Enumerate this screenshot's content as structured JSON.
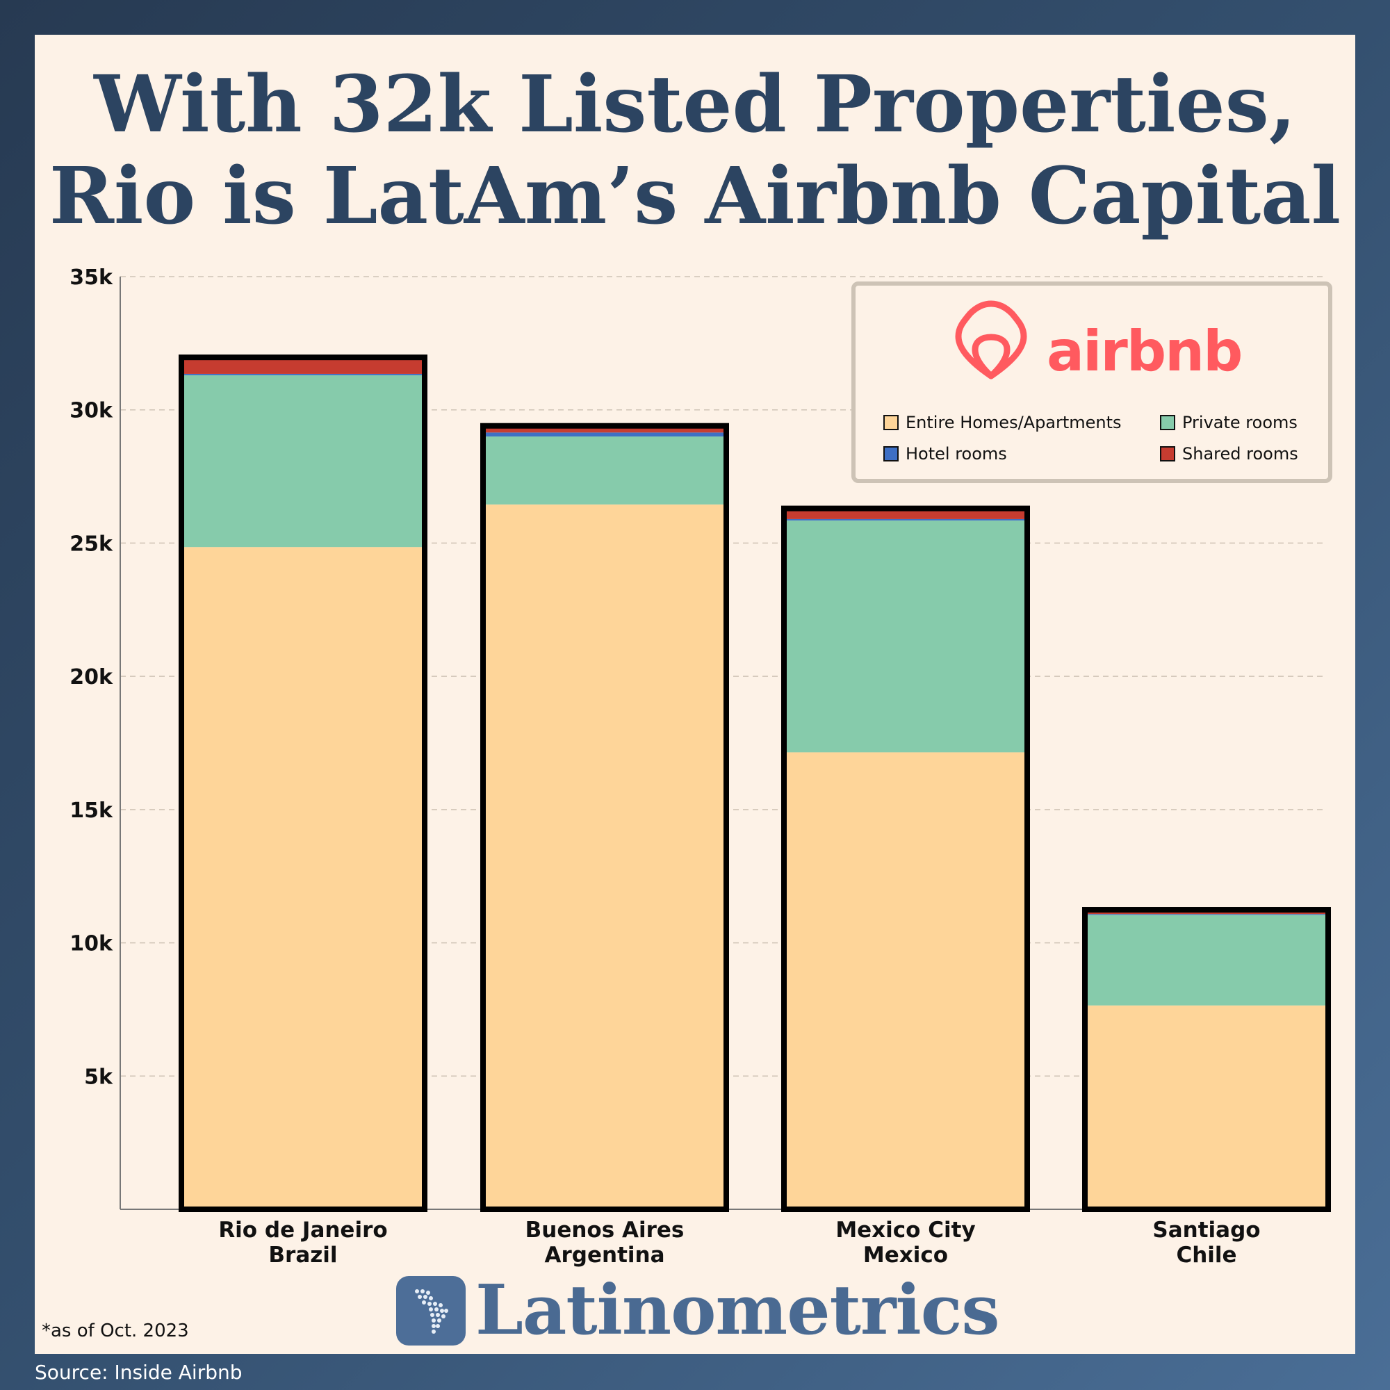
{
  "title_lines": [
    "With 32k Listed Properties,",
    "Rio is LatAm’s Airbnb Capital"
  ],
  "brand": {
    "name": "Latinometrics",
    "icon": "latam-map-icon"
  },
  "note": "*as of Oct. 2023",
  "source": "Source: Inside Airbnb",
  "legend": {
    "logo_text": "airbnb",
    "logo_icon": "airbnb-belo-icon",
    "placement": "top-right",
    "items": [
      {
        "label": "Entire Homes/Apartments",
        "color": "#fed599"
      },
      {
        "label": "Private rooms",
        "color": "#86cbab"
      },
      {
        "label": "Hotel rooms",
        "color": "#3e6fc4"
      },
      {
        "label": "Shared rooms",
        "color": "#c63c30"
      }
    ]
  },
  "colors": {
    "brand_accent": "#ff5a5f",
    "title": "#2c4461",
    "bar_outline": "#000000"
  },
  "chart_data": {
    "type": "bar",
    "stacked": true,
    "categories": [
      [
        "Rio de Janeiro",
        "Brazil"
      ],
      [
        "Buenos Aires",
        "Argentina"
      ],
      [
        "Mexico City",
        "Mexico"
      ],
      [
        "Santiago",
        "Chile"
      ]
    ],
    "series": [
      {
        "name": "Entire Homes/Apartments",
        "color": "#fed599",
        "values": [
          24850,
          26450,
          17150,
          7650
        ]
      },
      {
        "name": "Private rooms",
        "color": "#86cbab",
        "values": [
          6450,
          2550,
          8700,
          3400
        ]
      },
      {
        "name": "Hotel rooms",
        "color": "#3e6fc4",
        "values": [
          50,
          150,
          50,
          30
        ]
      },
      {
        "name": "Shared rooms",
        "color": "#c63c30",
        "values": [
          620,
          250,
          400,
          160
        ]
      }
    ],
    "ylim": [
      0,
      35000
    ],
    "yticks": [
      5000,
      10000,
      15000,
      20000,
      25000,
      30000,
      35000
    ],
    "ytick_labels": [
      "5k",
      "10k",
      "15k",
      "20k",
      "25k",
      "30k",
      "35k"
    ],
    "grid": "horizontal dashed"
  }
}
